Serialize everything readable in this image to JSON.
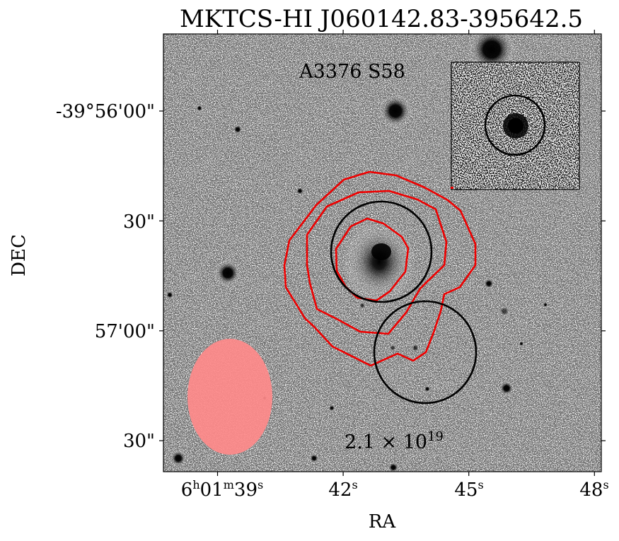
{
  "chart_data": {
    "type": "image",
    "title": "MKTCS-HI J060142.83-395642.5",
    "xlabel": "RA",
    "ylabel": "DEC",
    "source_label": "A3376 S58",
    "column_density_label": "2.1 × 10",
    "column_density_exponent": "19",
    "x_ticks": [
      {
        "ra_s": 39,
        "main": "6",
        "h": "h",
        "mid": "01",
        "m": "m",
        "sec": "39",
        "s": "s"
      },
      {
        "ra_s": 42,
        "main": "",
        "h": "",
        "mid": "",
        "m": "",
        "sec": "42",
        "s": "s"
      },
      {
        "ra_s": 45,
        "main": "",
        "h": "",
        "mid": "",
        "m": "",
        "sec": "45",
        "s": "s"
      },
      {
        "ra_s": 48,
        "main": "",
        "h": "",
        "mid": "",
        "m": "",
        "sec": "48",
        "s": "s"
      }
    ],
    "y_ticks": [
      {
        "dec_arcsec": 0,
        "label": "-39°56'00\""
      },
      {
        "dec_arcsec": 30,
        "label": "30\""
      },
      {
        "dec_arcsec": 60,
        "label": "57'00\""
      },
      {
        "dec_arcsec": 90,
        "label": "30\""
      }
    ],
    "contour_color": "#ee0000",
    "beam_color": "#ff8a8a",
    "marker_color": "#000000",
    "inset": true
  }
}
